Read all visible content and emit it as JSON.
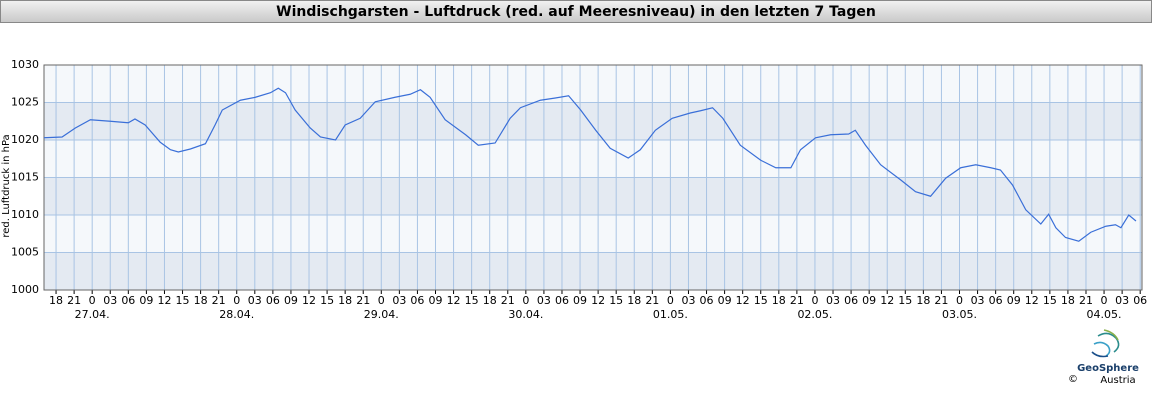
{
  "chart_data": {
    "type": "line",
    "title": "Windischgarsten - Luftdruck (red. auf Meeresniveau) in den letzten 7 Tagen",
    "y_label": "red. Luftdruck in hPa",
    "x": [
      -8,
      -5,
      -2.8,
      -0.3,
      3,
      6,
      7.1,
      8.8,
      11.3,
      13,
      14.3,
      16.3,
      18.8,
      20.4,
      21.6,
      24.6,
      27.1,
      29.6,
      30.9,
      32.1,
      33.7,
      36.2,
      37.9,
      40.4,
      42,
      44.5,
      47,
      50.3,
      52.8,
      54.5,
      56.1,
      58.6,
      62,
      64.1,
      66.9,
      69.4,
      71.1,
      74.4,
      76.9,
      79.1,
      81.1,
      83.6,
      86,
      89,
      91,
      93.5,
      96.3,
      99.3,
      101,
      103,
      104.7,
      107.6,
      111,
      113.5,
      116,
      117.6,
      120.1,
      122.6,
      125.6,
      126.7,
      128.4,
      130.9,
      134.2,
      136.7,
      139.2,
      141.7,
      144.2,
      146.7,
      149.2,
      150.8,
      152.8,
      155,
      157.5,
      158.8,
      160,
      161.6,
      163.8,
      165.8,
      168.3,
      169.9,
      170.8,
      172.1,
      173.3
    ],
    "series": [
      {
        "name": "Luftdruck",
        "color": "#3a6fd8",
        "values": [
          1020.3,
          1020.4,
          1021.6,
          1022.7,
          1022.5,
          1022.3,
          1022.8,
          1022,
          1019.7,
          1018.7,
          1018.4,
          1018.8,
          1019.5,
          1022,
          1024,
          1025.3,
          1025.7,
          1026.3,
          1026.9,
          1026.3,
          1024,
          1021.6,
          1020.4,
          1020,
          1022,
          1022.9,
          1025.1,
          1025.7,
          1026.1,
          1026.7,
          1025.7,
          1022.7,
          1020.7,
          1019.3,
          1019.6,
          1022.9,
          1024.3,
          1025.3,
          1025.6,
          1025.9,
          1024,
          1021.3,
          1018.9,
          1017.6,
          1018.7,
          1021.3,
          1022.9,
          1023.6,
          1023.9,
          1024.3,
          1022.9,
          1019.3,
          1017.3,
          1016.3,
          1016.3,
          1018.7,
          1020.3,
          1020.7,
          1020.8,
          1021.3,
          1019.3,
          1016.7,
          1014.7,
          1013.1,
          1012.5,
          1014.9,
          1016.3,
          1016.7,
          1016.3,
          1016,
          1014,
          1010.7,
          1008.8,
          1010.1,
          1008.3,
          1007,
          1006.5,
          1007.7,
          1008.5,
          1008.7,
          1008.3,
          1010,
          1009.2
        ]
      }
    ],
    "xlim": [
      -8,
      174.3
    ],
    "ylim": [
      1000,
      1030
    ],
    "yticks": [
      1000,
      1005,
      1010,
      1015,
      1020,
      1025,
      1030
    ],
    "xticks": [
      {
        "value": -6,
        "label": "18"
      },
      {
        "value": -3,
        "label": "21"
      },
      0,
      {
        "value": 3,
        "label": "03"
      },
      {
        "value": 6,
        "label": "06"
      },
      {
        "value": 9,
        "label": "09"
      },
      {
        "value": 12,
        "label": "12"
      },
      {
        "value": 15,
        "label": "15"
      },
      {
        "value": 18,
        "label": "18"
      },
      {
        "value": 21,
        "label": "21"
      },
      {
        "value": 24,
        "label": "0"
      },
      {
        "value": 27,
        "label": "03"
      },
      {
        "value": 30,
        "label": "06"
      },
      {
        "value": 33,
        "label": "09"
      },
      {
        "value": 36,
        "label": "12"
      },
      {
        "value": 39,
        "label": "15"
      },
      {
        "value": 42,
        "label": "18"
      },
      {
        "value": 45,
        "label": "21"
      },
      {
        "value": 48,
        "label": "0"
      },
      {
        "value": 51,
        "label": "03"
      },
      {
        "value": 54,
        "label": "06"
      },
      {
        "value": 57,
        "label": "09"
      },
      {
        "value": 60,
        "label": "12"
      },
      {
        "value": 63,
        "label": "15"
      },
      {
        "value": 66,
        "label": "18"
      },
      {
        "value": 69,
        "label": "21"
      },
      {
        "value": 72,
        "label": "0"
      },
      {
        "value": 75,
        "label": "03"
      },
      {
        "value": 78,
        "label": "06"
      },
      {
        "value": 81,
        "label": "09"
      },
      {
        "value": 84,
        "label": "12"
      },
      {
        "value": 87,
        "label": "15"
      },
      {
        "value": 90,
        "label": "18"
      },
      {
        "value": 93,
        "label": "21"
      },
      {
        "value": 96,
        "label": "0"
      },
      {
        "value": 99,
        "label": "03"
      },
      {
        "value": 102,
        "label": "06"
      },
      {
        "value": 105,
        "label": "09"
      },
      {
        "value": 108,
        "label": "12"
      },
      {
        "value": 111,
        "label": "15"
      },
      {
        "value": 114,
        "label": "18"
      },
      {
        "value": 117,
        "label": "21"
      },
      {
        "value": 120,
        "label": "0"
      },
      {
        "value": 123,
        "label": "03"
      },
      {
        "value": 126,
        "label": "06"
      },
      {
        "value": 129,
        "label": "09"
      },
      {
        "value": 132,
        "label": "12"
      },
      {
        "value": 135,
        "label": "15"
      },
      {
        "value": 138,
        "label": "18"
      },
      {
        "value": 141,
        "label": "21"
      },
      {
        "value": 144,
        "label": "0"
      },
      {
        "value": 147,
        "label": "03"
      },
      {
        "value": 150,
        "label": "06"
      },
      {
        "value": 153,
        "label": "09"
      },
      {
        "value": 156,
        "label": "12"
      },
      {
        "value": 159,
        "label": "15"
      },
      {
        "value": 162,
        "label": "18"
      },
      {
        "value": 165,
        "label": "21"
      },
      {
        "value": 168,
        "label": "0"
      },
      {
        "value": 171,
        "label": "03"
      },
      {
        "value": 174,
        "label": "06"
      }
    ],
    "day_labels": [
      {
        "value": 0,
        "label": "27.04."
      },
      {
        "value": 24,
        "label": "28.04."
      },
      {
        "value": 48,
        "label": "29.04."
      },
      {
        "value": 72,
        "label": "30.04."
      },
      {
        "value": 96,
        "label": "01.05."
      },
      {
        "value": 120,
        "label": "02.05."
      },
      {
        "value": 144,
        "label": "03.05."
      },
      {
        "value": 168,
        "label": "04.05."
      }
    ],
    "band_colors": [
      "#e4eaf2",
      "#f5f8fb"
    ],
    "grid": true
  },
  "logo": {
    "name": "GeoSphere",
    "subname": "Austria",
    "copyright": "©"
  }
}
